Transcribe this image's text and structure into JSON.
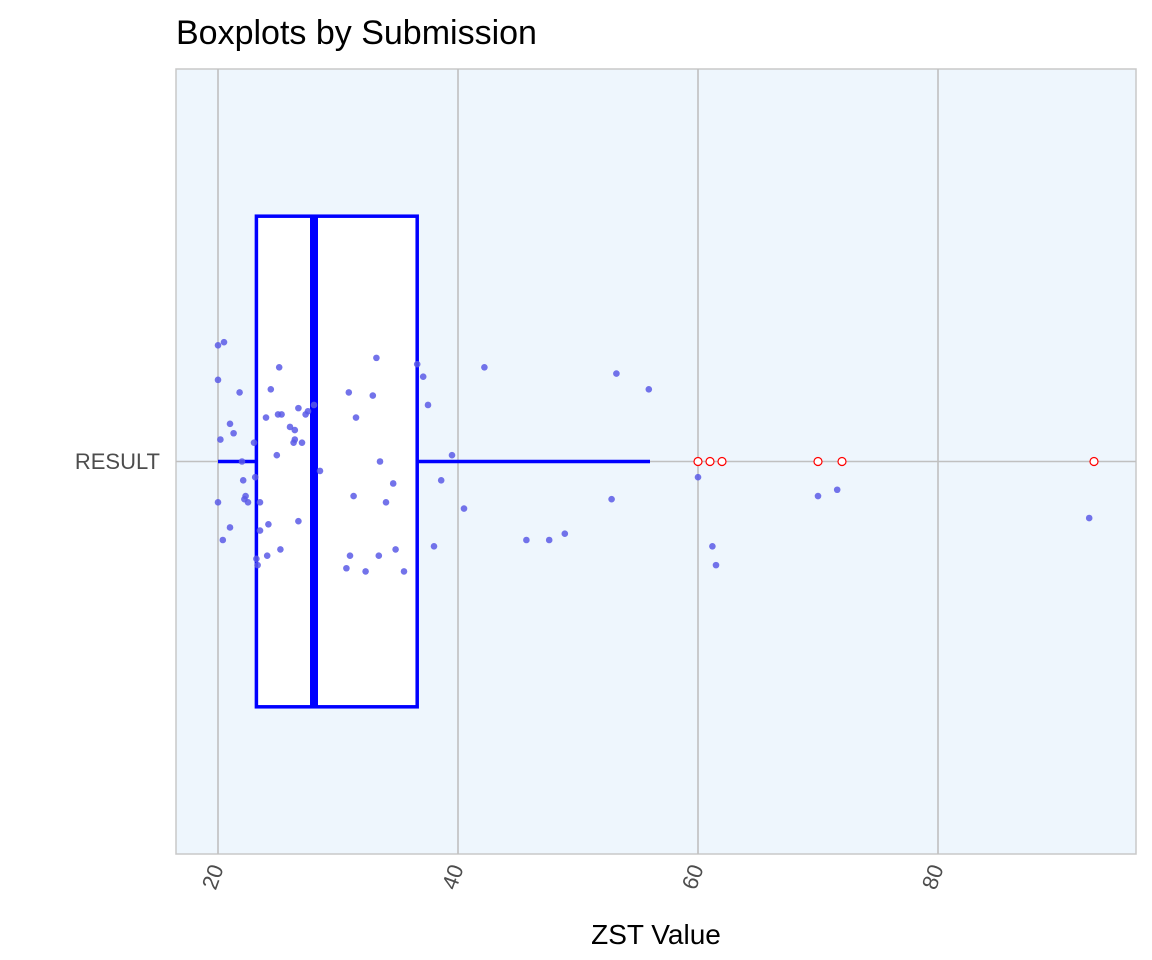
{
  "chart_data": {
    "type": "boxplot",
    "title": "Boxplots by Submission",
    "xlabel": "ZST Value",
    "ylabel": "",
    "categories": [
      "RESULT"
    ],
    "xlim": [
      16.5,
      96.5
    ],
    "xticks": [
      20,
      40,
      60,
      80
    ],
    "grid": true,
    "colors": {
      "panel_bg": "#eef6fd",
      "grid": "#c0c0c0",
      "panel_border": "#c8c8c8",
      "box": "#0000ff",
      "box_fill": "#ffffff",
      "points": "#5a5ae6",
      "outliers": "#ff0000"
    },
    "box": {
      "min": 20,
      "q1": 23.2,
      "median": 28,
      "q3": 36.6,
      "max": 56
    },
    "outliers": [
      60,
      61,
      62,
      70,
      72,
      93
    ],
    "points": [
      {
        "x": 20,
        "y": 0.37
      },
      {
        "x": 20.5,
        "y": 0.38
      },
      {
        "x": 20,
        "y": 0.26
      },
      {
        "x": 20.2,
        "y": 0.07
      },
      {
        "x": 21,
        "y": 0.12
      },
      {
        "x": 21.3,
        "y": 0.09
      },
      {
        "x": 20,
        "y": -0.13
      },
      {
        "x": 20.4,
        "y": -0.25
      },
      {
        "x": 21,
        "y": -0.21
      },
      {
        "x": 21.8,
        "y": 0.22
      },
      {
        "x": 22,
        "y": 0.0
      },
      {
        "x": 22.1,
        "y": -0.06
      },
      {
        "x": 22.2,
        "y": -0.12
      },
      {
        "x": 22.5,
        "y": -0.13
      },
      {
        "x": 22.3,
        "y": -0.11
      },
      {
        "x": 23,
        "y": 0.06
      },
      {
        "x": 23.1,
        "y": -0.05
      },
      {
        "x": 23.2,
        "y": -0.31
      },
      {
        "x": 23.3,
        "y": -0.33
      },
      {
        "x": 23.5,
        "y": -0.13
      },
      {
        "x": 23.5,
        "y": -0.22
      },
      {
        "x": 24,
        "y": 0.14
      },
      {
        "x": 24.1,
        "y": -0.3
      },
      {
        "x": 24.2,
        "y": -0.2
      },
      {
        "x": 24.4,
        "y": 0.23
      },
      {
        "x": 24.9,
        "y": 0.02
      },
      {
        "x": 25,
        "y": 0.15
      },
      {
        "x": 25.2,
        "y": -0.28
      },
      {
        "x": 25.1,
        "y": 0.3
      },
      {
        "x": 25.3,
        "y": 0.15
      },
      {
        "x": 26,
        "y": 0.11
      },
      {
        "x": 26.3,
        "y": 0.06
      },
      {
        "x": 26.4,
        "y": 0.07
      },
      {
        "x": 26.4,
        "y": 0.1
      },
      {
        "x": 26.7,
        "y": 0.17
      },
      {
        "x": 26.7,
        "y": -0.19
      },
      {
        "x": 27,
        "y": 0.06
      },
      {
        "x": 27.3,
        "y": 0.15
      },
      {
        "x": 27.5,
        "y": 0.16
      },
      {
        "x": 28,
        "y": 0.18
      },
      {
        "x": 28.5,
        "y": -0.03
      },
      {
        "x": 30.7,
        "y": -0.34
      },
      {
        "x": 30.9,
        "y": 0.22
      },
      {
        "x": 31,
        "y": -0.3
      },
      {
        "x": 31.3,
        "y": -0.11
      },
      {
        "x": 31.5,
        "y": 0.14
      },
      {
        "x": 32.3,
        "y": -0.35
      },
      {
        "x": 32.9,
        "y": 0.21
      },
      {
        "x": 33.2,
        "y": 0.33
      },
      {
        "x": 33.4,
        "y": -0.3
      },
      {
        "x": 33.5,
        "y": 0.0
      },
      {
        "x": 34,
        "y": -0.13
      },
      {
        "x": 34.6,
        "y": -0.07
      },
      {
        "x": 34.8,
        "y": -0.28
      },
      {
        "x": 35.5,
        "y": -0.35
      },
      {
        "x": 36.6,
        "y": 0.31
      },
      {
        "x": 37.1,
        "y": 0.27
      },
      {
        "x": 37.5,
        "y": 0.18
      },
      {
        "x": 38,
        "y": -0.27
      },
      {
        "x": 38.6,
        "y": -0.06
      },
      {
        "x": 39.5,
        "y": 0.02
      },
      {
        "x": 40.5,
        "y": -0.15
      },
      {
        "x": 42.2,
        "y": 0.3
      },
      {
        "x": 45.7,
        "y": -0.25
      },
      {
        "x": 47.6,
        "y": -0.25
      },
      {
        "x": 48.9,
        "y": -0.23
      },
      {
        "x": 52.8,
        "y": -0.12
      },
      {
        "x": 53.2,
        "y": 0.28
      },
      {
        "x": 55.9,
        "y": 0.23
      },
      {
        "x": 60,
        "y": -0.05
      },
      {
        "x": 61.2,
        "y": -0.27
      },
      {
        "x": 61.5,
        "y": -0.33
      },
      {
        "x": 70,
        "y": -0.11
      },
      {
        "x": 71.6,
        "y": -0.09
      },
      {
        "x": 92.6,
        "y": -0.18
      }
    ]
  }
}
